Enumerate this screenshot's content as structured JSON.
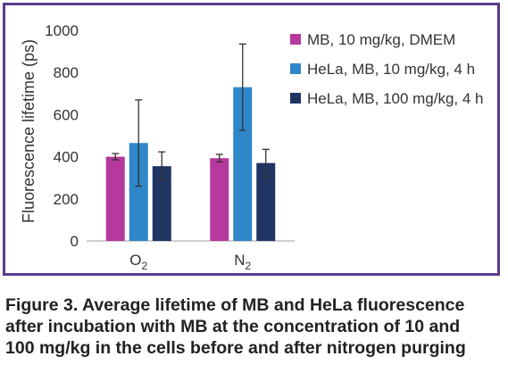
{
  "figure": {
    "caption_lines": [
      "Figure 3. Average lifetime of MB and HeLa fluorescence",
      "after incubation with MB at the concentration of 10 and",
      "100 mg/kg in the cells before and after nitrogen purging"
    ]
  },
  "chart_data": {
    "type": "bar",
    "ylabel": "Fluorescence lifetime (ps)",
    "xlabel": "",
    "ylim": [
      0,
      1000
    ],
    "yticks": [
      0,
      200,
      400,
      600,
      800,
      1000
    ],
    "grid": false,
    "legend_position": "right",
    "categories": [
      {
        "main": "O",
        "sub": "2"
      },
      {
        "main": "N",
        "sub": "2"
      }
    ],
    "series": [
      {
        "name": "MB, 10 mg/kg, DMEM",
        "color": "#b5399f",
        "values": [
          400,
          393
        ],
        "errors": [
          15,
          18
        ]
      },
      {
        "name": "HeLa, MB, 10 mg/kg, 4 h",
        "color": "#2f86c9",
        "values": [
          465,
          730
        ],
        "errors": [
          205,
          205
        ]
      },
      {
        "name": "HeLa, MB, 100 mg/kg, 4 h",
        "color": "#1f3461",
        "values": [
          355,
          370
        ],
        "errors": [
          68,
          65
        ]
      }
    ]
  }
}
